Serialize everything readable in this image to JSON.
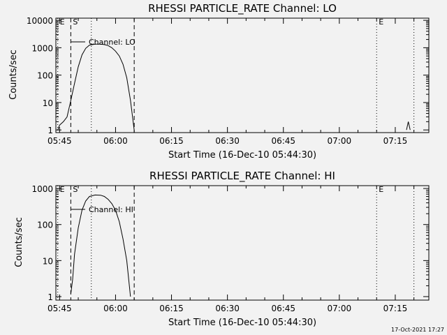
{
  "background_color": "#f2f2f2",
  "foreground_color": "#000000",
  "footer": {
    "timestamp": "17-Oct-2021 17:27"
  },
  "chart_data": [
    {
      "type": "line",
      "title": "RHESSI PARTICLE_RATE Channel: LO",
      "xlabel": "Start Time (16-Dec-10 05:44:30)",
      "ylabel": "Counts/sec",
      "yscale": "log",
      "xlim": [
        -0.5,
        99.5
      ],
      "ylim": [
        0.8,
        12000
      ],
      "x_ticks": [
        {
          "min": 0.5,
          "label": "05:45"
        },
        {
          "min": 15.5,
          "label": "06:00"
        },
        {
          "min": 30.5,
          "label": "06:15"
        },
        {
          "min": 45.5,
          "label": "06:30"
        },
        {
          "min": 60.5,
          "label": "06:45"
        },
        {
          "min": 75.5,
          "label": "07:00"
        },
        {
          "min": 90.5,
          "label": "07:15"
        }
      ],
      "y_ticks": [
        {
          "value": 1,
          "label": "1"
        },
        {
          "value": 10,
          "label": "10"
        },
        {
          "value": 100,
          "label": "100"
        },
        {
          "value": 1000,
          "label": "1000"
        },
        {
          "value": 10000,
          "label": "10000"
        }
      ],
      "legend": {
        "label": "Channel: LO",
        "position": "top-left"
      },
      "markers": [
        {
          "min": 0,
          "label": "E",
          "style": "dotted"
        },
        {
          "min": 3.5,
          "label": "S",
          "style": "dashed"
        },
        {
          "min": 9,
          "label": "",
          "style": "dotted"
        },
        {
          "min": 20.5,
          "label": "",
          "style": "dashed"
        },
        {
          "min": 85.5,
          "label": "E",
          "style": "dotted"
        },
        {
          "min": 95.5,
          "label": "",
          "style": "dotted"
        }
      ],
      "series": [
        {
          "name": "Channel: LO",
          "segments": [
            [
              [
                0,
                1
              ],
              [
                0.5,
                1.5
              ],
              [
                1.5,
                2
              ],
              [
                2.5,
                3
              ],
              [
                3.5,
                12
              ],
              [
                4.5,
                50
              ],
              [
                5.5,
                200
              ],
              [
                6.5,
                550
              ],
              [
                7.5,
                950
              ],
              [
                8.5,
                1250
              ],
              [
                10,
                1350
              ],
              [
                11.5,
                1350
              ],
              [
                12.5,
                1300
              ],
              [
                13.5,
                1200
              ],
              [
                14.5,
                1000
              ],
              [
                15.5,
                750
              ],
              [
                16.5,
                500
              ],
              [
                17.5,
                250
              ],
              [
                18.5,
                80
              ],
              [
                19.5,
                12
              ],
              [
                20.5,
                1
              ]
            ],
            [
              [
                93.5,
                1
              ],
              [
                94,
                2
              ],
              [
                94.5,
                1
              ]
            ]
          ]
        }
      ]
    },
    {
      "type": "line",
      "title": "RHESSI PARTICLE_RATE Channel: HI",
      "xlabel": "Start Time (16-Dec-10 05:44:30)",
      "ylabel": "Counts/sec",
      "yscale": "log",
      "xlim": [
        -0.5,
        99.5
      ],
      "ylim": [
        0.8,
        1200
      ],
      "x_ticks": [
        {
          "min": 0.5,
          "label": "05:45"
        },
        {
          "min": 15.5,
          "label": "06:00"
        },
        {
          "min": 30.5,
          "label": "06:15"
        },
        {
          "min": 45.5,
          "label": "06:30"
        },
        {
          "min": 60.5,
          "label": "06:45"
        },
        {
          "min": 75.5,
          "label": "07:00"
        },
        {
          "min": 90.5,
          "label": "07:15"
        }
      ],
      "y_ticks": [
        {
          "value": 1,
          "label": "1"
        },
        {
          "value": 10,
          "label": "10"
        },
        {
          "value": 100,
          "label": "100"
        },
        {
          "value": 1000,
          "label": "1000"
        }
      ],
      "legend": {
        "label": "Channel: HI",
        "position": "top-left"
      },
      "markers": [
        {
          "min": 0,
          "label": "E",
          "style": "dotted"
        },
        {
          "min": 3.5,
          "label": "S",
          "style": "dashed"
        },
        {
          "min": 9,
          "label": "",
          "style": "dotted"
        },
        {
          "min": 20.5,
          "label": "",
          "style": "dashed"
        },
        {
          "min": 85.5,
          "label": "E",
          "style": "dotted"
        },
        {
          "min": 95.5,
          "label": "",
          "style": "dotted"
        }
      ],
      "series": [
        {
          "name": "Channel: HI",
          "segments": [
            [
              [
                3.5,
                1.2
              ],
              [
                4,
                3
              ],
              [
                4.5,
                15
              ],
              [
                5.5,
                80
              ],
              [
                6.5,
                250
              ],
              [
                7.5,
                450
              ],
              [
                8.5,
                600
              ],
              [
                10,
                660
              ],
              [
                11.5,
                650
              ],
              [
                12.5,
                600
              ],
              [
                13.5,
                500
              ],
              [
                14.5,
                380
              ],
              [
                15.5,
                250
              ],
              [
                16.5,
                120
              ],
              [
                17.5,
                40
              ],
              [
                18.5,
                10
              ],
              [
                19.5,
                1
              ]
            ]
          ]
        }
      ]
    }
  ]
}
